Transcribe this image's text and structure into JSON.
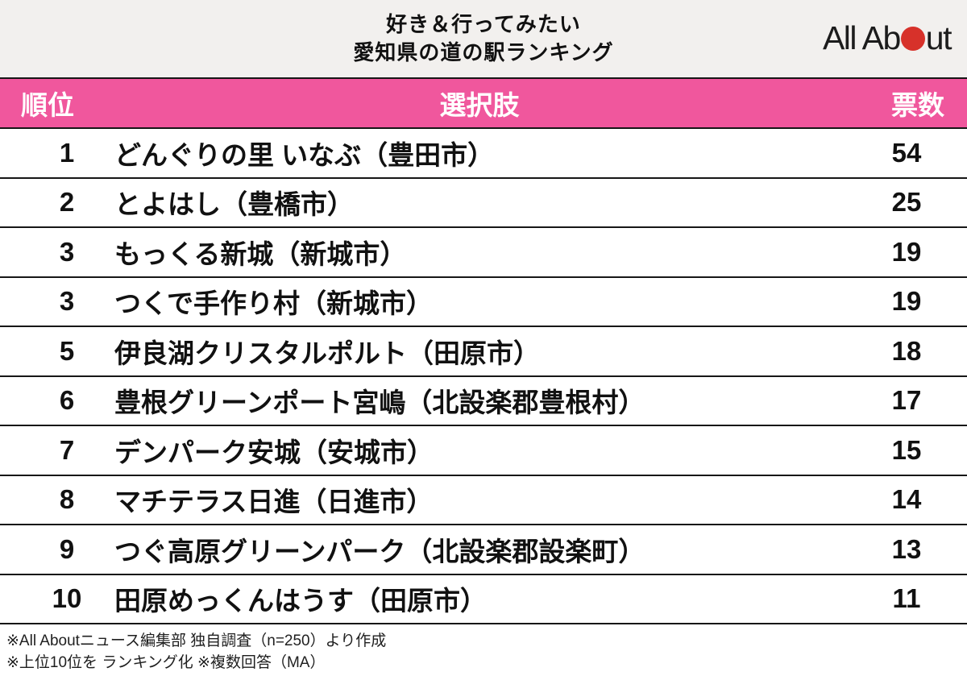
{
  "title": {
    "line1": "好き＆行ってみたい",
    "line2": "愛知県の道の駅ランキング"
  },
  "logo": {
    "text_before_dot": "All Ab",
    "text_after_dot": "ut",
    "dot_color": "#d7312a"
  },
  "table": {
    "headers": {
      "rank": "順位",
      "choice": "選択肢",
      "votes": "票数"
    },
    "rows": [
      {
        "rank": "1",
        "name": "どんぐりの里 いなぶ（豊田市）",
        "votes": "54"
      },
      {
        "rank": "2",
        "name": "とよはし（豊橋市）",
        "votes": "25"
      },
      {
        "rank": "3",
        "name": "もっくる新城（新城市）",
        "votes": "19"
      },
      {
        "rank": "3",
        "name": "つくで手作り村（新城市）",
        "votes": "19"
      },
      {
        "rank": "5",
        "name": "伊良湖クリスタルポルト（田原市）",
        "votes": "18"
      },
      {
        "rank": "6",
        "name": "豊根グリーンポート宮嶋（北設楽郡豊根村）",
        "votes": "17"
      },
      {
        "rank": "7",
        "name": "デンパーク安城（安城市）",
        "votes": "15"
      },
      {
        "rank": "8",
        "name": "マチテラス日進（日進市）",
        "votes": "14"
      },
      {
        "rank": "9",
        "name": "つぐ高原グリーンパーク（北設楽郡設楽町）",
        "votes": "13"
      },
      {
        "rank": "10",
        "name": "田原めっくんはうす（田原市）",
        "votes": "11"
      }
    ]
  },
  "footer": {
    "line1": "※All Aboutニュース編集部 独自調査（n=250）より作成",
    "line2": "※上位10位を ランキング化 ※複数回答（MA）"
  },
  "colors": {
    "header_pink": "#f0579d",
    "title_band_bg": "#f2f0ee",
    "divider": "#161616",
    "logo_red": "#d7312a"
  },
  "chart_data": {
    "type": "table",
    "title": "好き＆行ってみたい 愛知県の道の駅ランキング",
    "columns": [
      "順位",
      "選択肢",
      "票数"
    ],
    "categories": [
      "どんぐりの里 いなぶ（豊田市）",
      "とよはし（豊橋市）",
      "もっくる新城（新城市）",
      "つくで手作り村（新城市）",
      "伊良湖クリスタルポルト（田原市）",
      "豊根グリーンポート宮嶋（北設楽郡豊根村）",
      "デンパーク安城（安城市）",
      "マチテラス日進（日進市）",
      "つぐ高原グリーンパーク（北設楽郡設楽町）",
      "田原めっくんはうす（田原市）"
    ],
    "ranks": [
      1,
      2,
      3,
      3,
      5,
      6,
      7,
      8,
      9,
      10
    ],
    "values": [
      54,
      25,
      19,
      19,
      18,
      17,
      15,
      14,
      13,
      11
    ],
    "annotations": [
      "※All Aboutニュース編集部 独自調査（n=250）より作成",
      "※上位10位を ランキング化 ※複数回答（MA）"
    ]
  }
}
